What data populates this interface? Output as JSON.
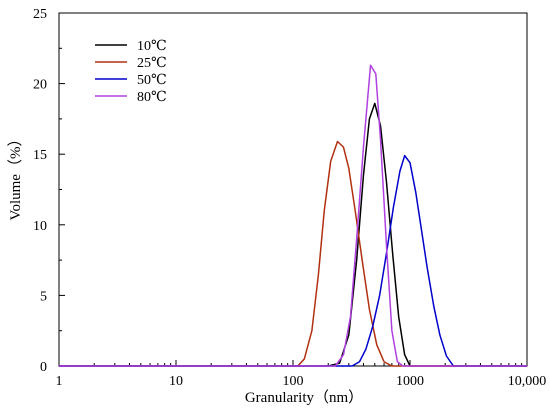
{
  "chart_data": {
    "type": "line",
    "xlabel": "Granularity（nm）",
    "ylabel": "Volume（%）",
    "x_scale": "log",
    "xlim": [
      1,
      10000
    ],
    "ylim": [
      0,
      25
    ],
    "x_ticks": [
      1,
      10,
      100,
      1000,
      10000
    ],
    "x_tick_labels": [
      "1",
      "10",
      "100",
      "1000",
      "10,000"
    ],
    "y_ticks": [
      0,
      5,
      10,
      15,
      20,
      25
    ],
    "y_tick_labels": [
      "0",
      "5",
      "10",
      "15",
      "20",
      "25"
    ],
    "grid": false,
    "legend_position": "top-left",
    "series": [
      {
        "name": "10℃",
        "color": "#000000",
        "x": [
          1,
          200,
          250,
          300,
          350,
          400,
          450,
          500,
          560,
          630,
          710,
          800,
          900,
          1000,
          1100,
          10000
        ],
        "y": [
          0,
          0,
          0.2,
          2.2,
          7.5,
          13.5,
          17.5,
          18.6,
          17.0,
          13.0,
          8.0,
          3.5,
          0.8,
          0,
          0,
          0
        ]
      },
      {
        "name": "25℃",
        "color": "#b03010",
        "x": [
          1,
          110,
          125,
          145,
          165,
          185,
          210,
          240,
          270,
          300,
          340,
          390,
          450,
          520,
          600,
          700,
          10000
        ],
        "y": [
          0,
          0,
          0.5,
          2.5,
          6.5,
          11.0,
          14.5,
          15.9,
          15.5,
          14.0,
          11.0,
          7.5,
          4.0,
          1.5,
          0.3,
          0,
          0
        ]
      },
      {
        "name": "50℃",
        "color": "#0000cc",
        "x": [
          1,
          320,
          370,
          420,
          480,
          550,
          630,
          720,
          820,
          900,
          1000,
          1120,
          1250,
          1400,
          1600,
          1800,
          2050,
          2350,
          10000
        ],
        "y": [
          0,
          0,
          0.3,
          1.2,
          2.8,
          5.0,
          8.0,
          11.2,
          13.8,
          14.9,
          14.4,
          12.3,
          9.7,
          7.0,
          4.2,
          2.2,
          0.7,
          0,
          0
        ]
      },
      {
        "name": "80℃",
        "color": "#b040e0",
        "x": [
          1,
          230,
          270,
          310,
          350,
          400,
          460,
          510,
          560,
          630,
          700,
          780,
          870,
          10000
        ],
        "y": [
          0,
          0,
          0.8,
          3.5,
          9.0,
          15.5,
          21.3,
          20.7,
          16.0,
          8.5,
          2.5,
          0.3,
          0,
          0
        ]
      }
    ]
  }
}
